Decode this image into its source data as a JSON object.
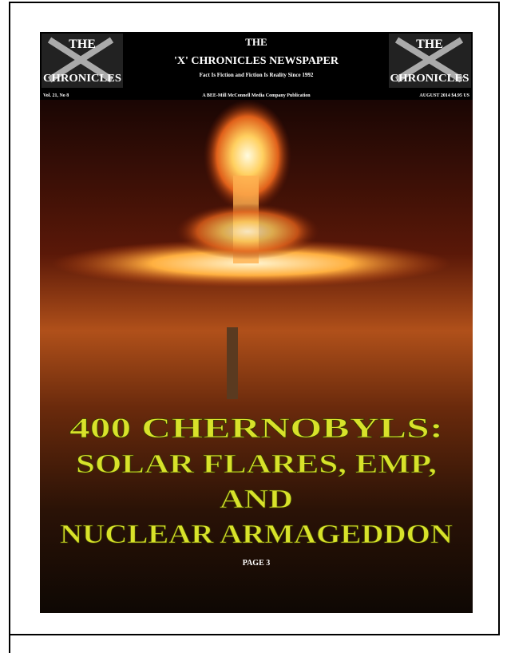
{
  "header": {
    "logo_left": {
      "top": "THE",
      "bottom": "CHRONICLES"
    },
    "logo_right": {
      "top": "THE",
      "bottom": "CHRONICLES"
    },
    "title": "THE",
    "name": "'X' CHRONICLES NEWSPAPER",
    "tagline": "Fact Is Fiction and Fiction Is Reality Since 1992",
    "volume": "Vol. 21, No 8",
    "publisher": "A BEE-Mill McConnell Media Company Publication",
    "date": "AUGUST 2014 $4.95 US"
  },
  "headline": {
    "lines": [
      "400 CHERNOBYLS:",
      "SOLAR FLARES, EMP,",
      "AND",
      "NUCLEAR ARMAGEDDON"
    ],
    "page_ref": "PAGE 3"
  }
}
